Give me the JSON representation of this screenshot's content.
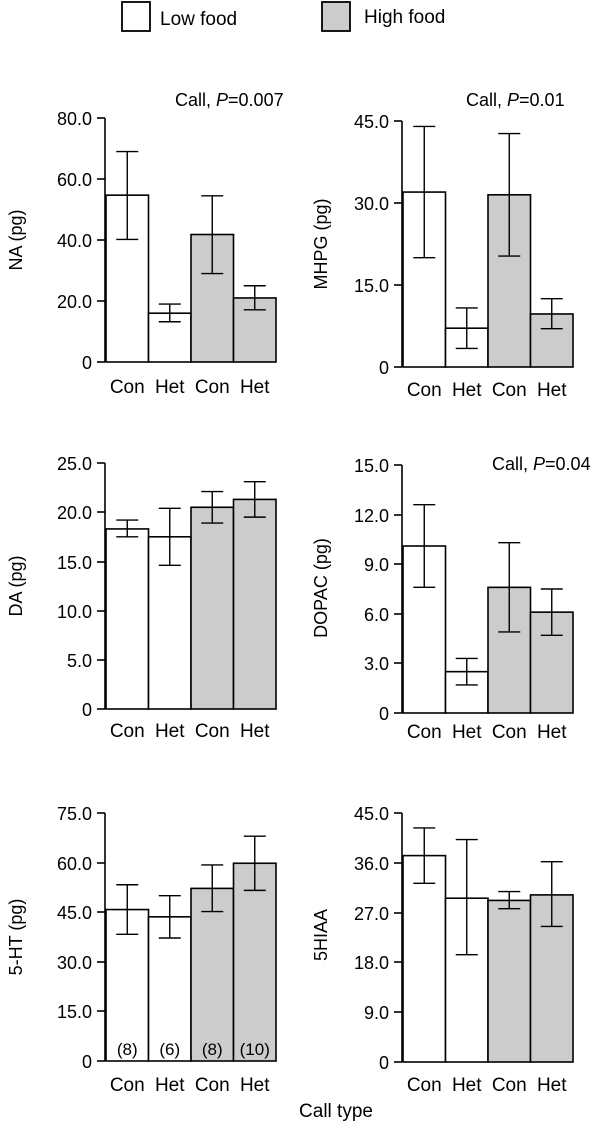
{
  "legend": {
    "items": [
      {
        "label": "Low food",
        "color": "#ffffff"
      },
      {
        "label": "High food",
        "color": "#cccccc"
      }
    ]
  },
  "figure": {
    "xlabel": "Call type"
  },
  "chart_data": [
    {
      "type": "bar",
      "annotation_prefix": "Call, ",
      "annotation_italic": "P",
      "annotation_suffix": "=0.007",
      "ylabel": "NA (pg)",
      "ylim": [
        0,
        80
      ],
      "yticks": [
        "0",
        "20.0",
        "40.0",
        "60.0",
        "80.0"
      ],
      "categories": [
        "Con",
        "Het",
        "Con",
        "Het"
      ],
      "groups": [
        "Low food",
        "Low food",
        "High food",
        "High food"
      ],
      "values": [
        54.7,
        16.0,
        41.8,
        21.0
      ],
      "error_low": [
        40.2,
        13.2,
        29.0,
        17.1
      ],
      "error_high": [
        69.0,
        19.0,
        54.5,
        25.0
      ]
    },
    {
      "type": "bar",
      "annotation_prefix": "Call, ",
      "annotation_italic": "P",
      "annotation_suffix": "=0.01",
      "ylabel": "MHPG (pg)",
      "ylim": [
        0,
        45
      ],
      "yticks": [
        "0",
        "15.0",
        "30.0",
        "45.0"
      ],
      "categories": [
        "Con",
        "Het",
        "Con",
        "Het"
      ],
      "groups": [
        "Low food",
        "Low food",
        "High food",
        "High food"
      ],
      "values": [
        32.0,
        7.1,
        31.5,
        9.7
      ],
      "error_low": [
        20.0,
        3.4,
        20.3,
        7.0
      ],
      "error_high": [
        44.0,
        10.8,
        42.7,
        12.5
      ]
    },
    {
      "type": "bar",
      "annotation_prefix": "",
      "annotation_italic": "",
      "annotation_suffix": "",
      "ylabel": "DA (pg)",
      "ylim": [
        0,
        25
      ],
      "yticks": [
        "0",
        "5.0",
        "10.0",
        "15.0",
        "20.0",
        "25.0"
      ],
      "categories": [
        "Con",
        "Het",
        "Con",
        "Het"
      ],
      "groups": [
        "Low food",
        "Low food",
        "High food",
        "High food"
      ],
      "values": [
        18.3,
        17.5,
        20.5,
        21.3
      ],
      "error_low": [
        17.5,
        14.6,
        18.9,
        19.5
      ],
      "error_high": [
        19.2,
        20.4,
        22.1,
        23.1
      ]
    },
    {
      "type": "bar",
      "annotation_prefix": "Call, ",
      "annotation_italic": "P",
      "annotation_suffix": "=0.04",
      "ylabel": "DOPAC (pg)",
      "ylim": [
        0,
        15
      ],
      "yticks": [
        "0",
        "3.0",
        "6.0",
        "9.0",
        "12.0",
        "15.0"
      ],
      "categories": [
        "Con",
        "Het",
        "Con",
        "Het"
      ],
      "groups": [
        "Low food",
        "Low food",
        "High food",
        "High food"
      ],
      "values": [
        10.1,
        2.5,
        7.6,
        6.1
      ],
      "error_low": [
        7.6,
        1.7,
        4.9,
        4.7
      ],
      "error_high": [
        12.6,
        3.3,
        10.3,
        7.5
      ]
    },
    {
      "type": "bar",
      "annotation_prefix": "",
      "annotation_italic": "",
      "annotation_suffix": "",
      "ylabel": "5-HT (pg)",
      "ylim": [
        0,
        75
      ],
      "yticks": [
        "0",
        "15.0",
        "30.0",
        "45.0",
        "60.0",
        "75.0"
      ],
      "categories": [
        "Con",
        "Het",
        "Con",
        "Het"
      ],
      "groups": [
        "Low food",
        "Low food",
        "High food",
        "High food"
      ],
      "values": [
        45.8,
        43.6,
        52.2,
        59.8
      ],
      "error_low": [
        38.3,
        37.2,
        45.2,
        51.6
      ],
      "error_high": [
        53.3,
        50.0,
        59.3,
        68.0
      ],
      "sample_sizes": [
        "(8)",
        "(6)",
        "(8)",
        "(10)"
      ]
    },
    {
      "type": "bar",
      "annotation_prefix": "",
      "annotation_italic": "",
      "annotation_suffix": "",
      "ylabel": "5HIAA",
      "ylim": [
        0,
        45
      ],
      "yticks": [
        "0",
        "9.0",
        "18.0",
        "27.0",
        "36.0",
        "45.0"
      ],
      "categories": [
        "Con",
        "Het",
        "Con",
        "Het"
      ],
      "groups": [
        "Low food",
        "Low food",
        "High food",
        "High food"
      ],
      "values": [
        37.3,
        29.6,
        29.2,
        30.2
      ],
      "error_low": [
        32.3,
        19.4,
        27.7,
        24.5
      ],
      "error_high": [
        42.3,
        40.2,
        30.8,
        36.2
      ]
    }
  ]
}
